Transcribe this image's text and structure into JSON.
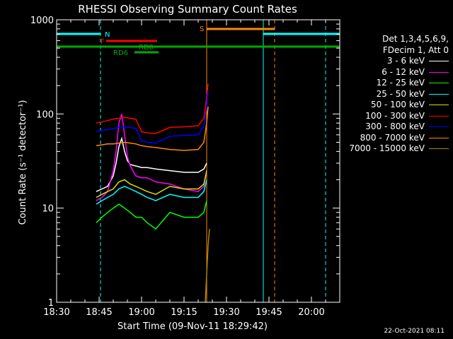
{
  "chart_data": {
    "type": "line",
    "title": "RHESSI Observing Summary Count Rates",
    "xlabel": "Start Time (09-Nov-11 18:29:42)",
    "ylabel": "Count Rate (s⁻¹ detector⁻¹)",
    "yscale": "log",
    "xlim_minutes": [
      0,
      100
    ],
    "ylim": [
      1,
      1000
    ],
    "x_ticks": [
      "18:30",
      "18:45",
      "19:00",
      "19:15",
      "19:30",
      "19:45",
      "20:00"
    ],
    "x_tick_minutes": [
      0,
      15,
      30,
      45,
      60,
      75,
      90
    ],
    "y_ticks": [
      "1",
      "10",
      "100",
      "1000"
    ],
    "y_tick_values": [
      1,
      10,
      100,
      1000
    ],
    "legend_header": [
      "Det 1,3,4,5,6,9,",
      "FDecim 1, Att 0"
    ],
    "legend_placement": "right",
    "series": [
      {
        "name": "3 - 6 keV",
        "color": "#ffffff",
        "x": [
          14,
          16,
          18,
          20,
          21,
          22,
          23,
          24,
          25,
          26,
          28,
          30,
          32,
          35,
          40,
          45,
          50,
          52,
          53
        ],
        "y": [
          15,
          16,
          17,
          22,
          30,
          45,
          55,
          40,
          32,
          29,
          28,
          27,
          27,
          26,
          25,
          24,
          24,
          26,
          30
        ]
      },
      {
        "name": "6 - 12 keV",
        "color": "#ff00ff",
        "x": [
          14,
          16,
          18,
          20,
          21,
          22,
          23,
          24,
          25,
          26,
          28,
          30,
          32,
          35,
          40,
          45,
          50,
          52,
          53
        ],
        "y": [
          12,
          13,
          15,
          25,
          40,
          80,
          100,
          60,
          35,
          28,
          22,
          21,
          21,
          19,
          18,
          16,
          15,
          17,
          25
        ]
      },
      {
        "name": "12 - 25 keV",
        "color": "#00ff00",
        "x": [
          14,
          16,
          18,
          20,
          22,
          24,
          26,
          28,
          30,
          32,
          35,
          40,
          45,
          50,
          52,
          53
        ],
        "y": [
          7,
          8,
          9,
          10,
          11,
          10,
          9,
          8,
          8,
          7,
          6,
          9,
          8,
          8,
          9,
          12
        ]
      },
      {
        "name": "25 - 50 keV",
        "color": "#00ffff",
        "x": [
          14,
          16,
          18,
          20,
          22,
          24,
          26,
          28,
          30,
          32,
          35,
          40,
          45,
          50,
          52,
          53
        ],
        "y": [
          11,
          12,
          13,
          14,
          16,
          17,
          16,
          15,
          14,
          13,
          12,
          14,
          13,
          13,
          15,
          20
        ]
      },
      {
        "name": "50 - 100 keV",
        "color": "#dddd00",
        "x": [
          14,
          16,
          18,
          20,
          22,
          24,
          26,
          28,
          30,
          32,
          35,
          40,
          45,
          50,
          52,
          53
        ],
        "y": [
          13,
          14,
          15,
          16,
          19,
          20,
          18,
          17,
          16,
          15,
          14,
          17,
          16,
          16,
          18,
          25
        ]
      },
      {
        "name": "100 - 300 keV",
        "color": "#ff0000",
        "x": [
          14,
          16,
          18,
          20,
          22,
          24,
          26,
          28,
          30,
          32,
          35,
          40,
          45,
          50,
          52,
          53,
          53.5
        ],
        "y": [
          80,
          82,
          85,
          88,
          90,
          92,
          90,
          88,
          65,
          63,
          62,
          72,
          73,
          75,
          90,
          150,
          210
        ]
      },
      {
        "name": "300 - 800 keV",
        "color": "#0000ff",
        "x": [
          14,
          16,
          18,
          20,
          22,
          24,
          26,
          28,
          30,
          32,
          35,
          40,
          45,
          50,
          52,
          53,
          53.5
        ],
        "y": [
          65,
          67,
          68,
          70,
          72,
          73,
          72,
          70,
          52,
          50,
          49,
          58,
          59,
          60,
          75,
          120,
          180
        ]
      },
      {
        "name": "800 - 7000 keV",
        "color": "#ff8800",
        "x": [
          14,
          16,
          18,
          20,
          22,
          24,
          26,
          28,
          30,
          32,
          35,
          40,
          45,
          50,
          52,
          53,
          53.5
        ],
        "y": [
          46,
          47,
          48,
          48,
          49,
          50,
          49,
          48,
          46,
          45,
          44,
          42,
          41,
          42,
          50,
          80,
          120
        ]
      },
      {
        "name": "7000 - 15000 keV",
        "color": "#aa8800",
        "x": [
          52.5,
          53,
          53.5,
          54
        ],
        "y": [
          1,
          2,
          4,
          6
        ]
      }
    ],
    "annotations": [
      {
        "label": "N",
        "color": "#00ffff"
      },
      {
        "label": "F",
        "color": "#ff0000"
      },
      {
        "label": "RD0",
        "color": "#00aa00"
      },
      {
        "label": "RD6",
        "color": "#00aa00"
      },
      {
        "label": "S",
        "color": "#ff8800"
      }
    ],
    "grid": false
  },
  "timestamp": "22-Oct-2021 08:11"
}
